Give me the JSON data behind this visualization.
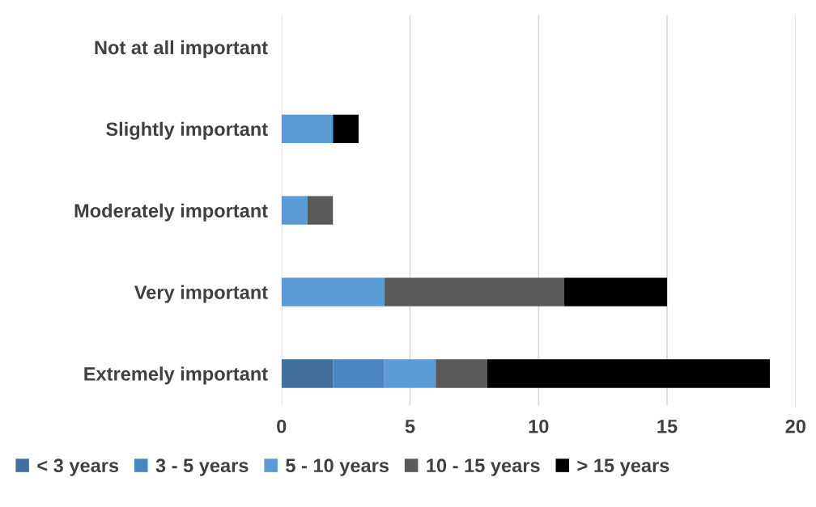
{
  "chart_data": {
    "type": "bar",
    "orientation": "horizontal",
    "stacked": true,
    "categories": [
      "Not at all important",
      "Slightly important",
      "Moderately important",
      "Very important",
      "Extremely important"
    ],
    "series": [
      {
        "name": "< 3 years",
        "color": "#41719c",
        "values": [
          0,
          0,
          0,
          0,
          2
        ]
      },
      {
        "name": "3 - 5 years",
        "color": "#4a87c2",
        "values": [
          0,
          0,
          0,
          0,
          2
        ]
      },
      {
        "name": "5 - 10 years",
        "color": "#5b9bd5",
        "values": [
          0,
          2,
          1,
          4,
          2
        ]
      },
      {
        "name": "10 - 15 years",
        "color": "#595959",
        "values": [
          0,
          0,
          1,
          7,
          2
        ]
      },
      {
        "name": "> 15 years",
        "color": "#000000",
        "values": [
          0,
          1,
          0,
          4,
          11
        ]
      }
    ],
    "xlim": [
      0,
      20
    ],
    "xticks": [
      0,
      5,
      10,
      15,
      20
    ],
    "grid": "x",
    "legend": "bottom"
  }
}
